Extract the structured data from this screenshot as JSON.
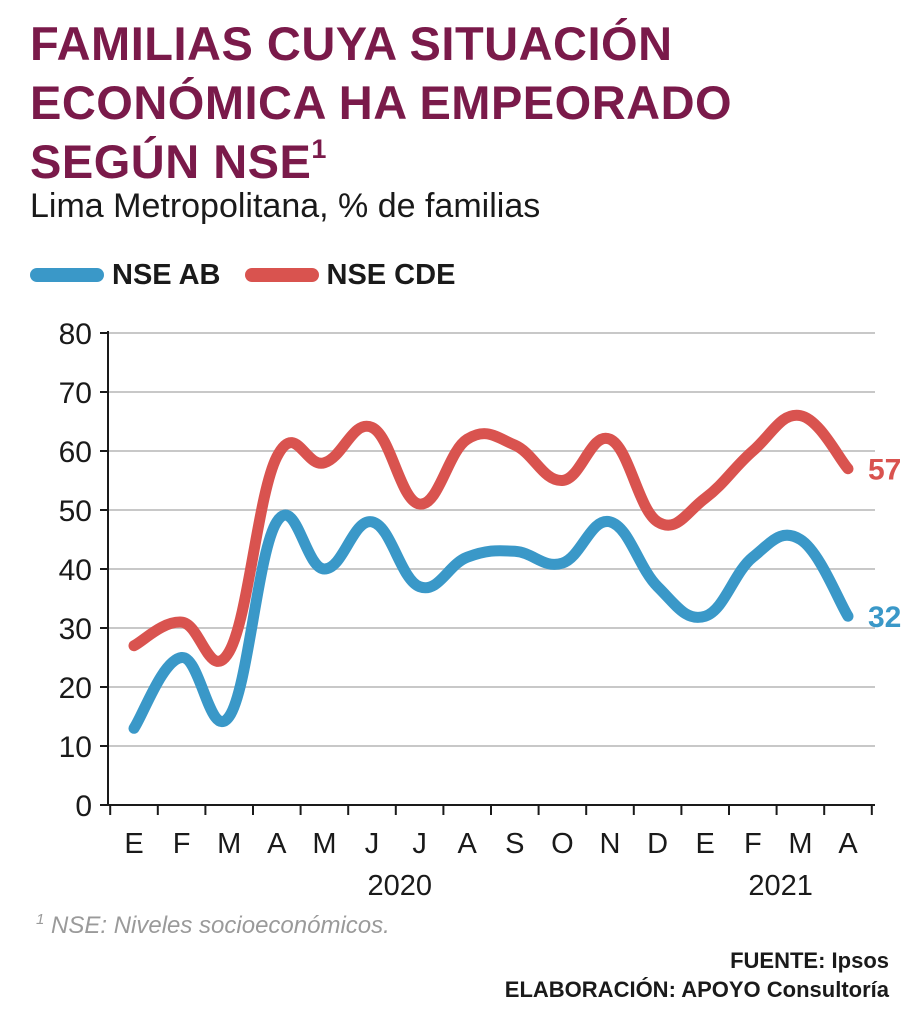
{
  "header": {
    "title_lines": [
      "FAMILIAS CUYA SITUACIÓN",
      "ECONÓMICA HA EMPEORADO",
      "SEGÚN NSE"
    ],
    "title_superscript": "1",
    "subtitle": "Lima Metropolitana, % de familias"
  },
  "colors": {
    "title": "#7a1a4a",
    "nse_ab": "#3a98c8",
    "nse_cde": "#d9534f",
    "grid": "#c8c8c8",
    "axis": "#1a1a1a"
  },
  "footnote": {
    "marker": "1",
    "text": "NSE: Niveles socioeconómicos."
  },
  "source": {
    "fuente": "FUENTE: Ipsos",
    "elaboracion": "ELABORACIÓN: APOYO Consultoría"
  },
  "chart_data": {
    "type": "line",
    "title": "FAMILIAS CUYA SITUACIÓN ECONÓMICA HA EMPEORADO SEGÚN NSE",
    "subtitle": "Lima Metropolitana, % de familias",
    "categories": [
      "E",
      "F",
      "M",
      "A",
      "M",
      "J",
      "J",
      "A",
      "S",
      "O",
      "N",
      "D",
      "E",
      "F",
      "M",
      "A"
    ],
    "year_labels": [
      {
        "label": "2020",
        "center_index": 5.5
      },
      {
        "label": "2021",
        "center_index": 13.5
      }
    ],
    "series": [
      {
        "name": "NSE AB",
        "color": "#3a98c8",
        "values": [
          13,
          25,
          15,
          48,
          40,
          48,
          37,
          42,
          43,
          41,
          48,
          37,
          32,
          42,
          45,
          32
        ],
        "end_label": "32"
      },
      {
        "name": "NSE CDE",
        "color": "#d9534f",
        "values": [
          27,
          31,
          26,
          59,
          58,
          64,
          51,
          62,
          61,
          55,
          62,
          48,
          52,
          60,
          66,
          57
        ],
        "end_label": "57"
      }
    ],
    "ylim": [
      0,
      80
    ],
    "yticks": [
      0,
      10,
      20,
      30,
      40,
      50,
      60,
      70,
      80
    ],
    "grid": true,
    "legend": "top-left",
    "xlabel": "",
    "ylabel": ""
  }
}
